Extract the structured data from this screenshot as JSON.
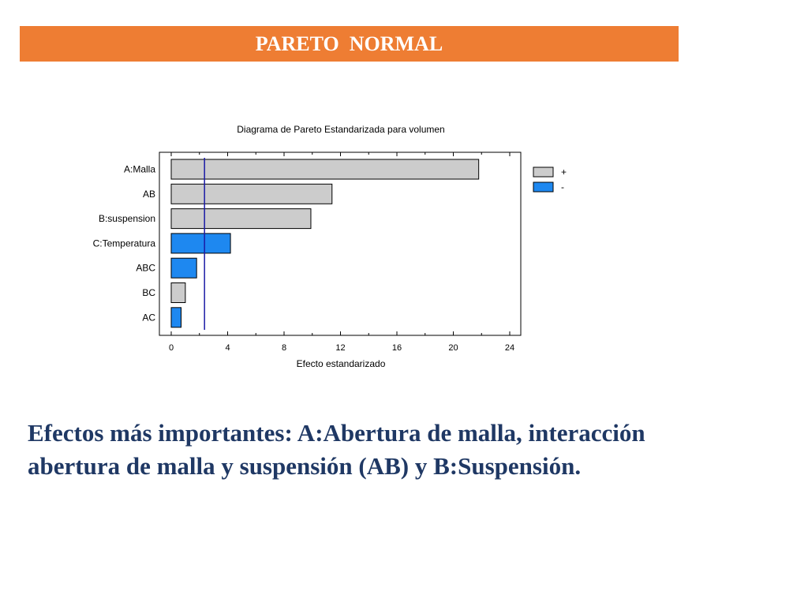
{
  "slide": {
    "title": "PARETO  NORMAL",
    "conclusion_line1": "Efectos más importantes: A:Abertura de malla, interacción",
    "conclusion_line2": "abertura de malla y suspensión (AB) y  B:Suspensión.",
    "colors": {
      "banner": "#ee7d33",
      "conclusion_text": "#1f3864"
    }
  },
  "chart_data": {
    "type": "bar",
    "orientation": "horizontal",
    "title": "Diagrama de Pareto Estandarizada para volumen",
    "xlabel": "Efecto estandarizado",
    "ylabel": "",
    "categories": [
      "A:Malla",
      "AB",
      "B:suspension",
      "C:Temperatura",
      "ABC",
      "BC",
      "AC"
    ],
    "values": [
      21.8,
      11.4,
      9.9,
      4.2,
      1.8,
      1.0,
      0.7
    ],
    "signs": [
      "+",
      "+",
      "+",
      "-",
      "-",
      "+",
      "-"
    ],
    "xlim": [
      0,
      24
    ],
    "xticks": [
      0,
      4,
      8,
      12,
      16,
      20,
      24
    ],
    "reference_line": 2.36,
    "legend": [
      {
        "label": "+",
        "color": "#cccccc"
      },
      {
        "label": "-",
        "color": "#1e88f0"
      }
    ],
    "legend_position": "right",
    "colors": {
      "positive": "#cccccc",
      "negative": "#1e88f0",
      "reference_line": "#1a1aa6"
    },
    "grid": false
  }
}
